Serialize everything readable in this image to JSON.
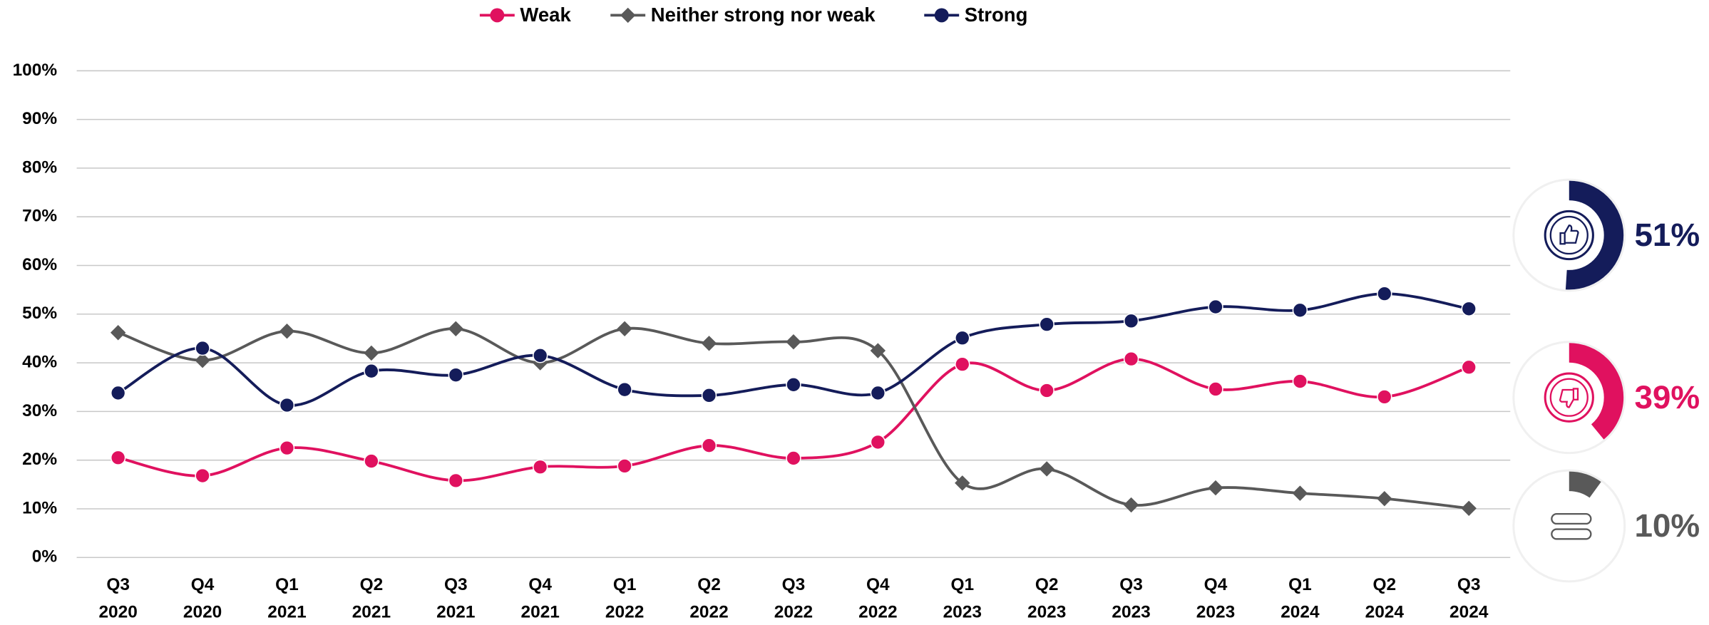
{
  "chart_data": {
    "type": "line",
    "categories": [
      "Q3 2020",
      "Q4 2020",
      "Q1 2021",
      "Q2 2021",
      "Q3 2021",
      "Q4 2021",
      "Q1 2022",
      "Q2 2022",
      "Q3 2022",
      "Q4 2022",
      "Q1 2023",
      "Q2 2023",
      "Q3 2023",
      "Q4 2023",
      "Q1 2024",
      "Q2 2024",
      "Q3 2024"
    ],
    "series": [
      {
        "name": "Weak",
        "color": "#e0115f",
        "marker": "circle",
        "values": [
          20.5,
          16.8,
          22.5,
          19.8,
          15.8,
          18.6,
          18.8,
          23,
          20.4,
          23.7,
          39.7,
          34.3,
          40.8,
          34.6,
          36.2,
          33,
          39.1
        ]
      },
      {
        "name": "Neither strong nor weak",
        "color": "#595959",
        "marker": "diamond",
        "values": [
          46.2,
          40.5,
          46.5,
          42,
          47,
          40,
          47,
          44,
          44.3,
          42.5,
          15.3,
          18.2,
          10.8,
          14.3,
          13.2,
          12.1,
          10.1
        ]
      },
      {
        "name": "Strong",
        "color": "#141c5a",
        "marker": "circle",
        "values": [
          33.8,
          43,
          31.3,
          38.3,
          37.5,
          41.5,
          34.5,
          33.3,
          35.5,
          33.8,
          45.1,
          47.9,
          48.6,
          51.5,
          50.8,
          54.2,
          51.1
        ]
      }
    ],
    "ylim": [
      0,
      100
    ],
    "yticks": [
      {
        "value": 0,
        "label": "0%"
      },
      {
        "value": 10,
        "label": "10%"
      },
      {
        "value": 20,
        "label": "20%"
      },
      {
        "value": 30,
        "label": "30%"
      },
      {
        "value": 40,
        "label": "40%"
      },
      {
        "value": 50,
        "label": "50%"
      },
      {
        "value": 60,
        "label": "60%"
      },
      {
        "value": 70,
        "label": "70%"
      },
      {
        "value": 80,
        "label": "80%"
      },
      {
        "value": 90,
        "label": "90%"
      },
      {
        "value": 100,
        "label": "100%"
      }
    ],
    "grid": true,
    "legend": "top"
  },
  "gauges": [
    {
      "value": 51,
      "label": "51%",
      "color": "#141c5a"
    },
    {
      "value": 39,
      "label": "39%",
      "color": "#e0115f"
    },
    {
      "value": 10,
      "label": "10%",
      "color": "#595959"
    }
  ]
}
